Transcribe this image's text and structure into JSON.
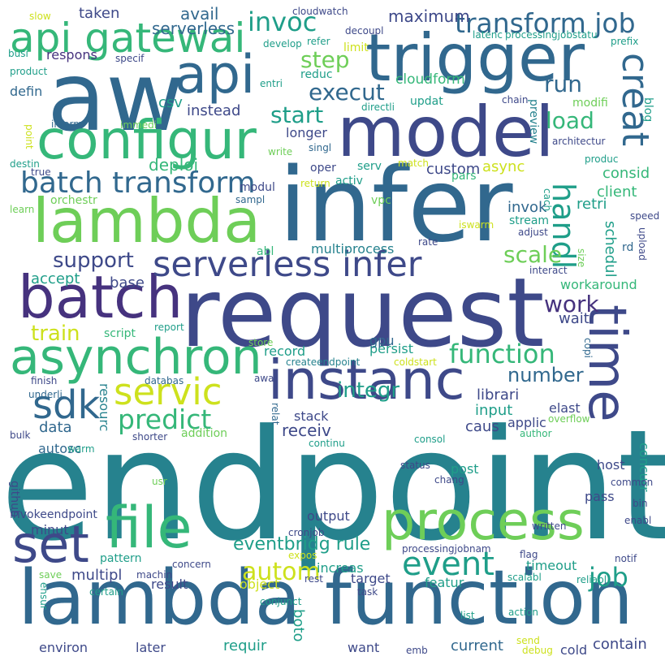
{
  "palette": {
    "purple": "#46327e",
    "indigo": "#3e4989",
    "steel": "#31688e",
    "teal": "#26828e",
    "sea": "#1f9e89",
    "green": "#35b779",
    "lime": "#6ece58",
    "yellow": "#cde11d",
    "gold": "#fde725"
  },
  "words": [
    {
      "text": "endpoint",
      "color": "teal"
    },
    {
      "text": "request",
      "color": "indigo"
    },
    {
      "text": "infer",
      "color": "steel"
    },
    {
      "text": "aw",
      "color": "steel"
    },
    {
      "text": "lambda function",
      "color": "steel"
    },
    {
      "text": "model",
      "color": "indigo"
    },
    {
      "text": "trigger",
      "color": "steel"
    },
    {
      "text": "lambda",
      "color": "lime"
    },
    {
      "text": "configur",
      "color": "green"
    },
    {
      "text": "api gatewai",
      "color": "green"
    },
    {
      "text": "api",
      "color": "steel"
    },
    {
      "text": "batch",
      "color": "purple"
    },
    {
      "text": "process",
      "color": "lime"
    },
    {
      "text": "file",
      "color": "green"
    },
    {
      "text": "instanc",
      "color": "indigo"
    },
    {
      "text": "asynchron",
      "color": "green"
    },
    {
      "text": "time",
      "color": "indigo"
    },
    {
      "text": "set",
      "color": "indigo"
    },
    {
      "text": "serverless infer",
      "color": "indigo"
    },
    {
      "text": "batch transform",
      "color": "steel"
    },
    {
      "text": "transform job",
      "color": "steel"
    },
    {
      "text": "creat",
      "color": "steel"
    },
    {
      "text": "servic",
      "color": "yellow"
    },
    {
      "text": "handl",
      "color": "sea"
    },
    {
      "text": "event",
      "color": "sea"
    },
    {
      "text": "sdk",
      "color": "steel"
    },
    {
      "text": "function",
      "color": "green"
    },
    {
      "text": "predict",
      "color": "green"
    },
    {
      "text": "autom",
      "color": "yellow"
    },
    {
      "text": "job",
      "color": "sea"
    },
    {
      "text": "invoc",
      "color": "sea"
    },
    {
      "text": "step",
      "color": "lime"
    },
    {
      "text": "execut",
      "color": "steel"
    },
    {
      "text": "start",
      "color": "sea"
    },
    {
      "text": "run",
      "color": "steel"
    },
    {
      "text": "load",
      "color": "green"
    },
    {
      "text": "scale",
      "color": "lime"
    },
    {
      "text": "support",
      "color": "indigo"
    },
    {
      "text": "work",
      "color": "purple"
    },
    {
      "text": "train",
      "color": "yellow"
    },
    {
      "text": "integr",
      "color": "sea"
    },
    {
      "text": "number",
      "color": "steel"
    },
    {
      "text": "eventbridg rule",
      "color": "sea"
    },
    {
      "text": "maximum",
      "color": "indigo"
    },
    {
      "text": "avail",
      "color": "steel"
    },
    {
      "text": "taken",
      "color": "indigo"
    },
    {
      "text": "serverless",
      "color": "steel"
    },
    {
      "text": "cloudform",
      "color": "green"
    },
    {
      "text": "instead",
      "color": "indigo"
    },
    {
      "text": "deploi",
      "color": "green"
    },
    {
      "text": "custom",
      "color": "indigo"
    },
    {
      "text": "async",
      "color": "yellow"
    },
    {
      "text": "consid",
      "color": "green"
    },
    {
      "text": "client",
      "color": "green"
    },
    {
      "text": "retri",
      "color": "sea"
    },
    {
      "text": "invok",
      "color": "steel"
    },
    {
      "text": "multiprocess",
      "color": "teal"
    },
    {
      "text": "stream",
      "color": "sea"
    },
    {
      "text": "schedul",
      "color": "sea"
    },
    {
      "text": "workaround",
      "color": "green"
    },
    {
      "text": "wait",
      "color": "indigo"
    },
    {
      "text": "base",
      "color": "indigo"
    },
    {
      "text": "accept",
      "color": "sea"
    },
    {
      "text": "script",
      "color": "green"
    },
    {
      "text": "record",
      "color": "sea"
    },
    {
      "text": "persist",
      "color": "sea"
    },
    {
      "text": "librari",
      "color": "indigo"
    },
    {
      "text": "elast",
      "color": "indigo"
    },
    {
      "text": "input",
      "color": "sea"
    },
    {
      "text": "applic",
      "color": "indigo"
    },
    {
      "text": "caus",
      "color": "indigo"
    },
    {
      "text": "receiv",
      "color": "indigo"
    },
    {
      "text": "stack",
      "color": "indigo"
    },
    {
      "text": "data",
      "color": "steel"
    },
    {
      "text": "resourc",
      "color": "teal"
    },
    {
      "text": "gpu",
      "color": "steel"
    },
    {
      "text": "addition",
      "color": "lime"
    },
    {
      "text": "autosc",
      "color": "steel"
    },
    {
      "text": "github",
      "color": "indigo"
    },
    {
      "text": "invokeendpoint",
      "color": "indigo"
    },
    {
      "text": "minut",
      "color": "indigo"
    },
    {
      "text": "pattern",
      "color": "sea"
    },
    {
      "text": "multipl",
      "color": "indigo"
    },
    {
      "text": "result",
      "color": "indigo"
    },
    {
      "text": "object",
      "color": "yellow"
    },
    {
      "text": "increas",
      "color": "sea"
    },
    {
      "text": "target",
      "color": "indigo"
    },
    {
      "text": "timeout",
      "color": "sea"
    },
    {
      "text": "featur",
      "color": "sea"
    },
    {
      "text": "output",
      "color": "indigo"
    },
    {
      "text": "post",
      "color": "sea"
    },
    {
      "text": "host",
      "color": "indigo"
    },
    {
      "text": "pass",
      "color": "indigo"
    },
    {
      "text": "concurr",
      "color": "sea"
    },
    {
      "text": "environ",
      "color": "indigo"
    },
    {
      "text": "later",
      "color": "indigo"
    },
    {
      "text": "requir",
      "color": "sea"
    },
    {
      "text": "boto",
      "color": "sea"
    },
    {
      "text": "want",
      "color": "indigo"
    },
    {
      "text": "current",
      "color": "steel"
    },
    {
      "text": "cold",
      "color": "indigo"
    },
    {
      "text": "contain",
      "color": "indigo"
    },
    {
      "text": "respons",
      "color": "purple"
    },
    {
      "text": "defin",
      "color": "steel"
    },
    {
      "text": "csv",
      "color": "sea"
    },
    {
      "text": "modul",
      "color": "indigo"
    },
    {
      "text": "oper",
      "color": "indigo"
    },
    {
      "text": "serv",
      "color": "sea"
    },
    {
      "text": "activ",
      "color": "sea"
    },
    {
      "text": "pars",
      "color": "green"
    },
    {
      "text": "vpc",
      "color": "lime"
    },
    {
      "text": "orchestr",
      "color": "lime"
    },
    {
      "text": "longer",
      "color": "indigo"
    },
    {
      "text": "updat",
      "color": "sea"
    },
    {
      "text": "modifi",
      "color": "lime"
    },
    {
      "text": "limit",
      "color": "yellow"
    },
    {
      "text": "reduc",
      "color": "sea"
    },
    {
      "text": "rd",
      "color": "steel"
    },
    {
      "text": "abl",
      "color": "green"
    },
    {
      "text": "sampl",
      "color": "steel"
    },
    {
      "text": "preview",
      "color": "teal"
    },
    {
      "text": "cach",
      "color": "sea"
    },
    {
      "text": "size",
      "color": "lime"
    },
    {
      "text": "blog",
      "color": "sea"
    },
    {
      "text": "cloudwatch",
      "color": "indigo"
    },
    {
      "text": "refer",
      "color": "sea"
    },
    {
      "text": "decoupl",
      "color": "indigo"
    },
    {
      "text": "latenc",
      "color": "sea"
    },
    {
      "text": "processingjobstatu",
      "color": "sea"
    },
    {
      "text": "prefix",
      "color": "sea"
    },
    {
      "text": "develop",
      "color": "sea"
    },
    {
      "text": "entri",
      "color": "sea"
    },
    {
      "text": "directli",
      "color": "sea"
    },
    {
      "text": "chain",
      "color": "indigo"
    },
    {
      "text": "busi",
      "color": "sea"
    },
    {
      "text": "product",
      "color": "sea"
    },
    {
      "text": "specif",
      "color": "indigo"
    },
    {
      "text": "slow",
      "color": "yellow"
    },
    {
      "text": "inform",
      "color": "steel"
    },
    {
      "text": "immedi",
      "color": "lime"
    },
    {
      "text": "point",
      "color": "yellow"
    },
    {
      "text": "destin",
      "color": "sea"
    },
    {
      "text": "true",
      "color": "indigo"
    },
    {
      "text": "write",
      "color": "lime"
    },
    {
      "text": "singl",
      "color": "steel"
    },
    {
      "text": "match",
      "color": "yellow"
    },
    {
      "text": "return",
      "color": "yellow"
    },
    {
      "text": "architectur",
      "color": "indigo"
    },
    {
      "text": "produc",
      "color": "sea"
    },
    {
      "text": "learn",
      "color": "lime"
    },
    {
      "text": "iswarm",
      "color": "yellow"
    },
    {
      "text": "rate",
      "color": "indigo"
    },
    {
      "text": "adjust",
      "color": "indigo"
    },
    {
      "text": "speed",
      "color": "indigo"
    },
    {
      "text": "upload",
      "color": "indigo"
    },
    {
      "text": "interact",
      "color": "indigo"
    },
    {
      "text": "report",
      "color": "sea"
    },
    {
      "text": "store",
      "color": "lime"
    },
    {
      "text": "createendpoint",
      "color": "teal"
    },
    {
      "text": "coldstart",
      "color": "yellow"
    },
    {
      "text": "copi",
      "color": "steel"
    },
    {
      "text": "finish",
      "color": "indigo"
    },
    {
      "text": "databas",
      "color": "steel"
    },
    {
      "text": "awai",
      "color": "indigo"
    },
    {
      "text": "underli",
      "color": "steel"
    },
    {
      "text": "relat",
      "color": "steel"
    },
    {
      "text": "bulk",
      "color": "indigo"
    },
    {
      "text": "warm",
      "color": "sea"
    },
    {
      "text": "shorter",
      "color": "indigo"
    },
    {
      "text": "continu",
      "color": "sea"
    },
    {
      "text": "overflow",
      "color": "lime"
    },
    {
      "text": "author",
      "color": "green"
    },
    {
      "text": "consol",
      "color": "sea"
    },
    {
      "text": "usr",
      "color": "lime"
    },
    {
      "text": "status",
      "color": "indigo"
    },
    {
      "text": "chang",
      "color": "indigo"
    },
    {
      "text": "common",
      "color": "indigo"
    },
    {
      "text": "bin",
      "color": "indigo"
    },
    {
      "text": "enabl",
      "color": "indigo"
    },
    {
      "text": "written",
      "color": "indigo"
    },
    {
      "text": "cronjob",
      "color": "indigo"
    },
    {
      "text": "processingjobnam",
      "color": "indigo"
    },
    {
      "text": "flag",
      "color": "indigo"
    },
    {
      "text": "notif",
      "color": "indigo"
    },
    {
      "text": "concern",
      "color": "indigo"
    },
    {
      "text": "expos",
      "color": "yellow"
    },
    {
      "text": "save",
      "color": "lime"
    },
    {
      "text": "machin",
      "color": "indigo"
    },
    {
      "text": "ensur",
      "color": "sea"
    },
    {
      "text": "certain",
      "color": "sea"
    },
    {
      "text": "conjunct",
      "color": "sea"
    },
    {
      "text": "rest",
      "color": "indigo"
    },
    {
      "text": "task",
      "color": "indigo"
    },
    {
      "text": "scalabl",
      "color": "sea"
    },
    {
      "text": "reliabl",
      "color": "sea"
    },
    {
      "text": "action",
      "color": "sea"
    },
    {
      "text": "list",
      "color": "sea"
    },
    {
      "text": "emb",
      "color": "indigo"
    },
    {
      "text": "send",
      "color": "yellow"
    },
    {
      "text": "debug",
      "color": "yellow"
    }
  ]
}
